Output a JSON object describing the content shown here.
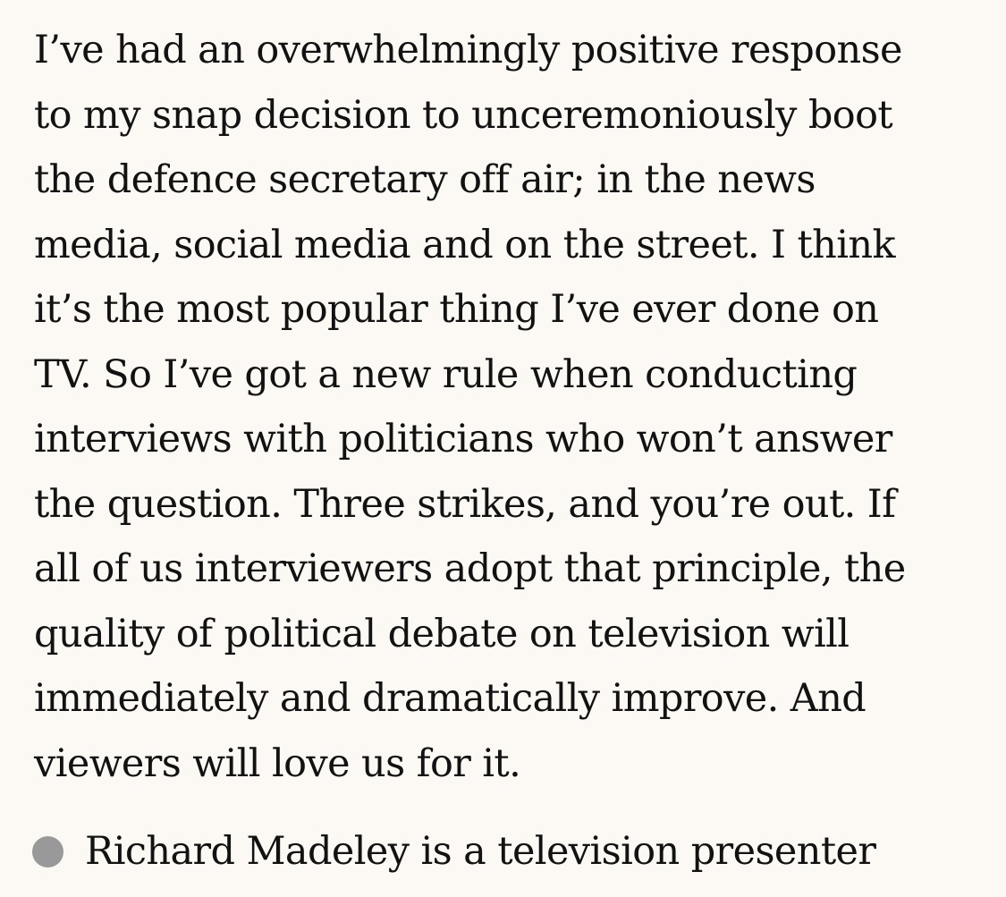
{
  "article": {
    "paragraph_lines": [
      "I’ve had an overwhelmingly positive response",
      "to my snap decision to unceremoniously boot",
      "the defence secretary off air; in the news",
      "media, social media and on the street. I think",
      "it’s the most popular thing I’ve ever done on",
      "TV. So I’ve got a new rule when conducting",
      "interviews with politicians who won’t answer",
      "the question. Three strikes, and you’re out. If",
      "all of us interviewers adopt that principle, the",
      "quality of political debate on television will",
      "immediately and dramatically improve. And",
      "viewers will love us for it."
    ],
    "footnote": {
      "bullet_color": "#999999",
      "text": "Richard Madeley is a television presenter"
    }
  }
}
